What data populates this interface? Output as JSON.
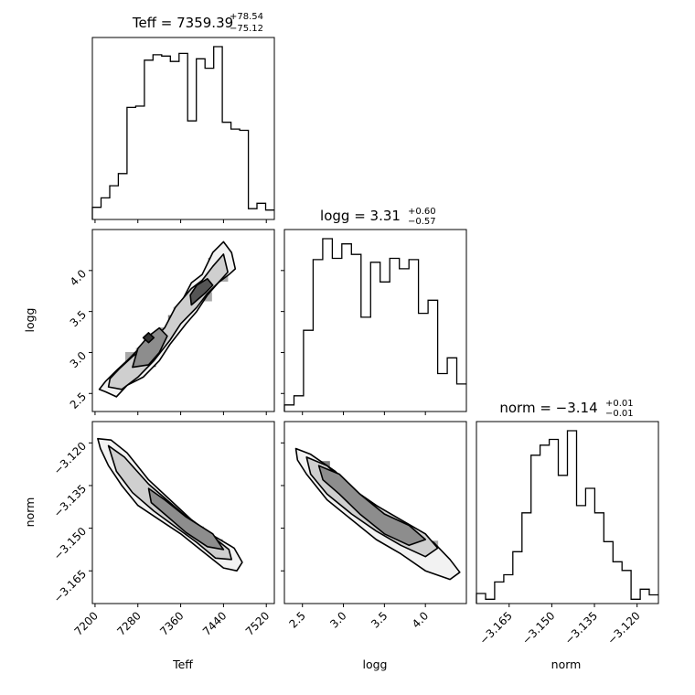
{
  "chart_data": {
    "type": "corner",
    "params": [
      "Teff",
      "logg",
      "norm"
    ],
    "titles": [
      {
        "param": "Teff",
        "median": "7359.39",
        "plus": "+78.54",
        "minus": "−75.12"
      },
      {
        "param": "logg",
        "median": "3.31",
        "plus": "+0.60",
        "minus": "−0.57"
      },
      {
        "param": "norm",
        "median": "−3.14",
        "plus": "+0.01",
        "minus": "−0.01"
      }
    ],
    "ranges": {
      "Teff": [
        7195,
        7535
      ],
      "logg": [
        2.28,
        4.5
      ],
      "norm": [
        -3.1765,
        -3.1125
      ]
    },
    "ticks": {
      "Teff": {
        "values": [
          7200,
          7280,
          7360,
          7440,
          7520
        ],
        "labels": [
          "7200",
          "7280",
          "7360",
          "7440",
          "7520"
        ]
      },
      "logg": {
        "values": [
          2.5,
          3.0,
          3.5,
          4.0
        ],
        "labels": [
          "2.5",
          "3.0",
          "3.5",
          "4.0"
        ]
      },
      "norm": {
        "values": [
          -3.165,
          -3.15,
          -3.135,
          -3.12
        ],
        "labels": [
          "−3.165",
          "−3.150",
          "−3.135",
          "−3.120"
        ]
      }
    },
    "histograms": {
      "Teff": [
        9,
        16,
        25,
        34,
        83,
        84,
        118,
        122,
        121,
        117,
        123,
        73,
        119,
        112,
        128,
        72,
        67,
        66,
        8,
        12,
        7
      ],
      "logg": [
        5,
        12,
        62,
        116,
        132,
        117,
        128,
        120,
        72,
        114,
        99,
        117,
        109,
        116,
        75,
        85,
        29,
        41,
        21
      ],
      "norm": [
        7,
        3,
        15,
        20,
        36,
        63,
        103,
        110,
        114,
        89,
        120,
        68,
        80,
        63,
        43,
        29,
        23,
        3,
        10,
        6
      ]
    },
    "contours": {
      "logg_vs_Teff": [
        [
          [
            7208,
            2.55
          ],
          [
            7220,
            2.52
          ],
          [
            7240,
            2.46
          ],
          [
            7260,
            2.6
          ],
          [
            7290,
            2.7
          ],
          [
            7320,
            2.9
          ],
          [
            7340,
            3.1
          ],
          [
            7370,
            3.35
          ],
          [
            7390,
            3.5
          ],
          [
            7410,
            3.7
          ],
          [
            7430,
            3.85
          ],
          [
            7450,
            3.95
          ],
          [
            7462,
            4.02
          ],
          [
            7455,
            4.22
          ],
          [
            7440,
            4.35
          ],
          [
            7420,
            4.22
          ],
          [
            7400,
            3.95
          ],
          [
            7380,
            3.85
          ],
          [
            7360,
            3.6
          ],
          [
            7340,
            3.4
          ],
          [
            7320,
            3.2
          ],
          [
            7290,
            3.1
          ],
          [
            7260,
            2.9
          ],
          [
            7240,
            2.78
          ],
          [
            7220,
            2.65
          ]
        ],
        [
          [
            7225,
            2.58
          ],
          [
            7250,
            2.55
          ],
          [
            7280,
            2.7
          ],
          [
            7310,
            2.9
          ],
          [
            7340,
            3.15
          ],
          [
            7360,
            3.35
          ],
          [
            7390,
            3.55
          ],
          [
            7410,
            3.72
          ],
          [
            7430,
            3.85
          ],
          [
            7448,
            3.98
          ],
          [
            7440,
            4.2
          ],
          [
            7420,
            4.05
          ],
          [
            7400,
            3.88
          ],
          [
            7380,
            3.78
          ],
          [
            7350,
            3.55
          ],
          [
            7330,
            3.3
          ],
          [
            7300,
            3.1
          ],
          [
            7270,
            2.95
          ],
          [
            7245,
            2.8
          ],
          [
            7228,
            2.68
          ]
        ],
        [
          [
            7270,
            2.82
          ],
          [
            7300,
            2.85
          ],
          [
            7320,
            3.0
          ],
          [
            7335,
            3.2
          ],
          [
            7320,
            3.3
          ],
          [
            7300,
            3.2
          ],
          [
            7280,
            3.05
          ]
        ],
        [
          [
            7380,
            3.58
          ],
          [
            7405,
            3.72
          ],
          [
            7420,
            3.82
          ],
          [
            7410,
            3.9
          ],
          [
            7390,
            3.82
          ],
          [
            7378,
            3.7
          ]
        ],
        [
          [
            7300,
            3.12
          ],
          [
            7310,
            3.18
          ],
          [
            7300,
            3.24
          ],
          [
            7290,
            3.18
          ]
        ]
      ],
      "norm_vs_Teff": [
        [
          [
            7205,
            -3.1185
          ],
          [
            7230,
            -3.119
          ],
          [
            7260,
            -3.1235
          ],
          [
            7300,
            -3.133
          ],
          [
            7340,
            -3.14
          ],
          [
            7380,
            -3.147
          ],
          [
            7420,
            -3.1525
          ],
          [
            7460,
            -3.157
          ],
          [
            7475,
            -3.162
          ],
          [
            7465,
            -3.165
          ],
          [
            7440,
            -3.164
          ],
          [
            7400,
            -3.158
          ],
          [
            7360,
            -3.152
          ],
          [
            7320,
            -3.147
          ],
          [
            7280,
            -3.142
          ],
          [
            7250,
            -3.135
          ],
          [
            7225,
            -3.128
          ],
          [
            7210,
            -3.122
          ]
        ],
        [
          [
            7225,
            -3.121
          ],
          [
            7255,
            -3.125
          ],
          [
            7300,
            -3.1345
          ],
          [
            7340,
            -3.141
          ],
          [
            7380,
            -3.1475
          ],
          [
            7420,
            -3.153
          ],
          [
            7450,
            -3.1575
          ],
          [
            7455,
            -3.161
          ],
          [
            7425,
            -3.1605
          ],
          [
            7390,
            -3.155
          ],
          [
            7350,
            -3.1495
          ],
          [
            7310,
            -3.144
          ],
          [
            7270,
            -3.1375
          ],
          [
            7240,
            -3.13
          ]
        ],
        [
          [
            7300,
            -3.136
          ],
          [
            7330,
            -3.14
          ],
          [
            7370,
            -3.146
          ],
          [
            7420,
            -3.152
          ],
          [
            7440,
            -3.1575
          ],
          [
            7410,
            -3.1565
          ],
          [
            7370,
            -3.1515
          ],
          [
            7330,
            -3.145
          ],
          [
            7305,
            -3.141
          ]
        ]
      ],
      "norm_vs_logg": [
        [
          [
            2.42,
            -3.122
          ],
          [
            2.6,
            -3.124
          ],
          [
            2.9,
            -3.13
          ],
          [
            3.2,
            -3.138
          ],
          [
            3.5,
            -3.144
          ],
          [
            3.8,
            -3.149
          ],
          [
            4.1,
            -3.155
          ],
          [
            4.3,
            -3.161
          ],
          [
            4.42,
            -3.1655
          ],
          [
            4.3,
            -3.168
          ],
          [
            4.0,
            -3.165
          ],
          [
            3.7,
            -3.159
          ],
          [
            3.4,
            -3.154
          ],
          [
            3.1,
            -3.147
          ],
          [
            2.8,
            -3.14
          ],
          [
            2.55,
            -3.131
          ],
          [
            2.44,
            -3.126
          ]
        ],
        [
          [
            2.55,
            -3.125
          ],
          [
            2.8,
            -3.128
          ],
          [
            3.1,
            -3.136
          ],
          [
            3.4,
            -3.142
          ],
          [
            3.7,
            -3.147
          ],
          [
            4.0,
            -3.152
          ],
          [
            4.15,
            -3.157
          ],
          [
            4.0,
            -3.16
          ],
          [
            3.7,
            -3.156
          ],
          [
            3.4,
            -3.151
          ],
          [
            3.1,
            -3.145
          ],
          [
            2.8,
            -3.138
          ],
          [
            2.6,
            -3.131
          ]
        ],
        [
          [
            2.7,
            -3.128
          ],
          [
            2.95,
            -3.131
          ],
          [
            3.2,
            -3.138
          ],
          [
            3.5,
            -3.145
          ],
          [
            3.8,
            -3.149
          ],
          [
            4.0,
            -3.154
          ],
          [
            3.8,
            -3.156
          ],
          [
            3.5,
            -3.152
          ],
          [
            3.2,
            -3.145
          ],
          [
            2.95,
            -3.138
          ],
          [
            2.75,
            -3.133
          ]
        ]
      ]
    },
    "density_points": {
      "logg_vs_Teff": [
        [
          7300,
          3.12
        ],
        [
          7305,
          2.88
        ],
        [
          7345,
          3.4
        ],
        [
          7395,
          3.78
        ],
        [
          7420,
          4.1
        ],
        [
          7440,
          3.92
        ],
        [
          7265,
          2.95
        ],
        [
          7355,
          3.5
        ],
        [
          7330,
          3.25
        ],
        [
          7410,
          3.68
        ],
        [
          7380,
          3.6
        ],
        [
          7285,
          3.0
        ]
      ],
      "norm_vs_Teff": [
        [
          7290,
          -3.138
        ],
        [
          7355,
          -3.1475
        ],
        [
          7430,
          -3.1555
        ],
        [
          7445,
          -3.1575
        ],
        [
          7250,
          -3.126
        ],
        [
          7325,
          -3.144
        ],
        [
          7395,
          -3.151
        ],
        [
          7270,
          -3.133
        ],
        [
          7410,
          -3.155
        ]
      ],
      "norm_vs_logg": [
        [
          3.05,
          -3.138
        ],
        [
          3.5,
          -3.1475
        ],
        [
          2.78,
          -3.128
        ],
        [
          3.25,
          -3.143
        ],
        [
          3.75,
          -3.151
        ],
        [
          3.95,
          -3.154
        ],
        [
          2.9,
          -3.133
        ],
        [
          3.6,
          -3.149
        ],
        [
          4.1,
          -3.156
        ]
      ]
    }
  }
}
